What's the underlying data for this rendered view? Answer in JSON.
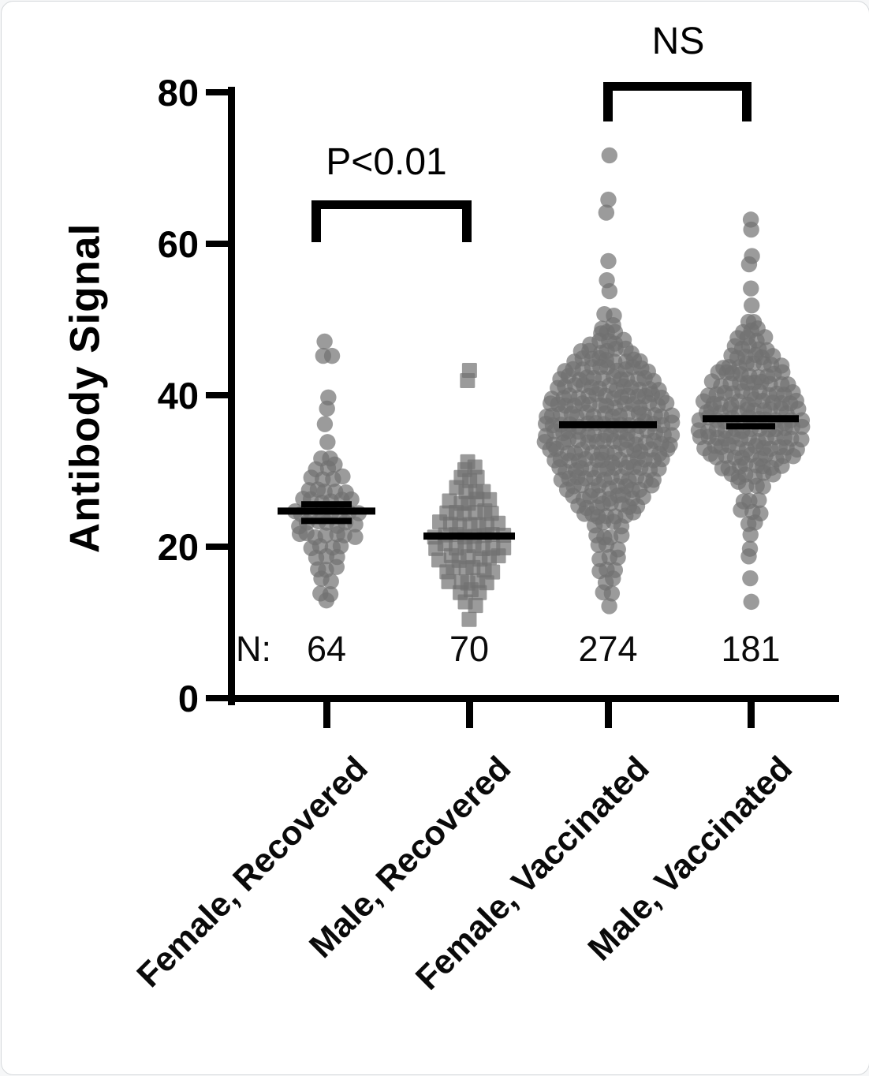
{
  "figure": {
    "background": "#ffffff",
    "border_color": "#d6d9dc"
  },
  "chart_data": {
    "type": "scatter",
    "subtype": "beeswarm",
    "title": "",
    "xlabel": "",
    "ylabel": "Antibody Signal",
    "ylim": [
      0,
      80
    ],
    "yticks": [
      "0",
      "20",
      "40",
      "60",
      "80"
    ],
    "ytick_values": [
      0,
      20,
      40,
      60,
      80
    ],
    "grid": "off",
    "legend": "none",
    "marker_color": "#707070",
    "median_color": "#000000",
    "n_prefix": "N:",
    "groups": [
      {
        "label": "Female, Recovered",
        "n": "64",
        "marker": "circle",
        "median": 24.7,
        "median_segments": [
          {
            "value": 25.6,
            "half_width": 32
          },
          {
            "value": 23.4,
            "half_width": 32
          }
        ],
        "bins": [
          [
            47,
            1
          ],
          [
            45,
            2
          ],
          [
            40,
            1
          ],
          [
            38,
            1
          ],
          [
            36,
            1
          ],
          [
            34,
            1
          ],
          [
            32,
            2
          ],
          [
            30.5,
            3
          ],
          [
            29,
            4
          ],
          [
            27.5,
            5
          ],
          [
            26,
            6
          ],
          [
            24.5,
            8
          ],
          [
            23,
            7
          ],
          [
            21.5,
            7
          ],
          [
            20,
            4
          ],
          [
            18.5,
            3
          ],
          [
            17,
            3
          ],
          [
            15.5,
            2
          ],
          [
            14,
            2
          ],
          [
            13,
            1
          ]
        ]
      },
      {
        "label": "Male, Recovered",
        "n": "70",
        "marker": "square",
        "median": 21.4,
        "median_segments": [],
        "bins": [
          [
            43,
            1
          ],
          [
            42.2,
            1
          ],
          [
            31.5,
            1
          ],
          [
            30.5,
            2
          ],
          [
            29,
            3
          ],
          [
            27.5,
            4
          ],
          [
            26,
            5
          ],
          [
            24.5,
            6
          ],
          [
            23,
            7
          ],
          [
            21.5,
            8
          ],
          [
            20,
            8
          ],
          [
            18.5,
            7
          ],
          [
            17,
            6
          ],
          [
            15.5,
            5
          ],
          [
            14,
            3
          ],
          [
            12.5,
            2
          ],
          [
            10.5,
            1
          ]
        ]
      },
      {
        "label": "Female, Vaccinated",
        "n": "274",
        "marker": "circle",
        "median": 36.1,
        "median_segments": [],
        "bins": [
          [
            72,
            1
          ],
          [
            65.5,
            1
          ],
          [
            64.3,
            1
          ],
          [
            58,
            1
          ],
          [
            55,
            1
          ],
          [
            53.5,
            1
          ],
          [
            50.5,
            2
          ],
          [
            49,
            2
          ],
          [
            48,
            3
          ],
          [
            47,
            5
          ],
          [
            45.8,
            7
          ],
          [
            44.6,
            9
          ],
          [
            43.4,
            11
          ],
          [
            42.2,
            12
          ],
          [
            41,
            13
          ],
          [
            39.8,
            14
          ],
          [
            38.6,
            15
          ],
          [
            37.4,
            16
          ],
          [
            36.2,
            16
          ],
          [
            35,
            16
          ],
          [
            33.8,
            16
          ],
          [
            32.6,
            15
          ],
          [
            31.4,
            14
          ],
          [
            30.2,
            13
          ],
          [
            29,
            12
          ],
          [
            27.8,
            11
          ],
          [
            26.6,
            9
          ],
          [
            25.4,
            8
          ],
          [
            24.2,
            7
          ],
          [
            23,
            4
          ],
          [
            21.5,
            4
          ],
          [
            20,
            3
          ],
          [
            18.5,
            3
          ],
          [
            17,
            3
          ],
          [
            15.5,
            2
          ],
          [
            14,
            2
          ],
          [
            12.5,
            1
          ]
        ]
      },
      {
        "label": "Male, Vaccinated",
        "n": "181",
        "marker": "circle",
        "median": 36.9,
        "median_segments": [
          {
            "value": 35.9,
            "half_width": 31
          }
        ],
        "bins": [
          [
            63,
            1
          ],
          [
            62,
            1
          ],
          [
            58.5,
            1
          ],
          [
            57,
            1
          ],
          [
            54,
            1
          ],
          [
            52,
            1
          ],
          [
            50,
            2
          ],
          [
            48.5,
            3
          ],
          [
            47.5,
            4
          ],
          [
            46.3,
            5
          ],
          [
            45.1,
            6
          ],
          [
            43.9,
            8
          ],
          [
            42.7,
            9
          ],
          [
            41.5,
            10
          ],
          [
            40.3,
            11
          ],
          [
            39.1,
            12
          ],
          [
            37.9,
            12
          ],
          [
            36.7,
            13
          ],
          [
            35.5,
            13
          ],
          [
            34.3,
            13
          ],
          [
            33.1,
            12
          ],
          [
            31.9,
            11
          ],
          [
            30.7,
            8
          ],
          [
            29.5,
            6
          ],
          [
            28.3,
            4
          ],
          [
            26,
            3
          ],
          [
            24.5,
            3
          ],
          [
            23,
            2
          ],
          [
            21.5,
            1
          ],
          [
            20,
            1
          ],
          [
            18.5,
            1
          ],
          [
            16,
            1
          ],
          [
            13,
            1
          ]
        ]
      }
    ],
    "brackets": [
      {
        "label": "P<0.01",
        "between": [
          "Female, Recovered",
          "Male, Recovered"
        ]
      },
      {
        "label": "NS",
        "between": [
          "Female, Vaccinated",
          "Male, Vaccinated"
        ]
      }
    ]
  }
}
